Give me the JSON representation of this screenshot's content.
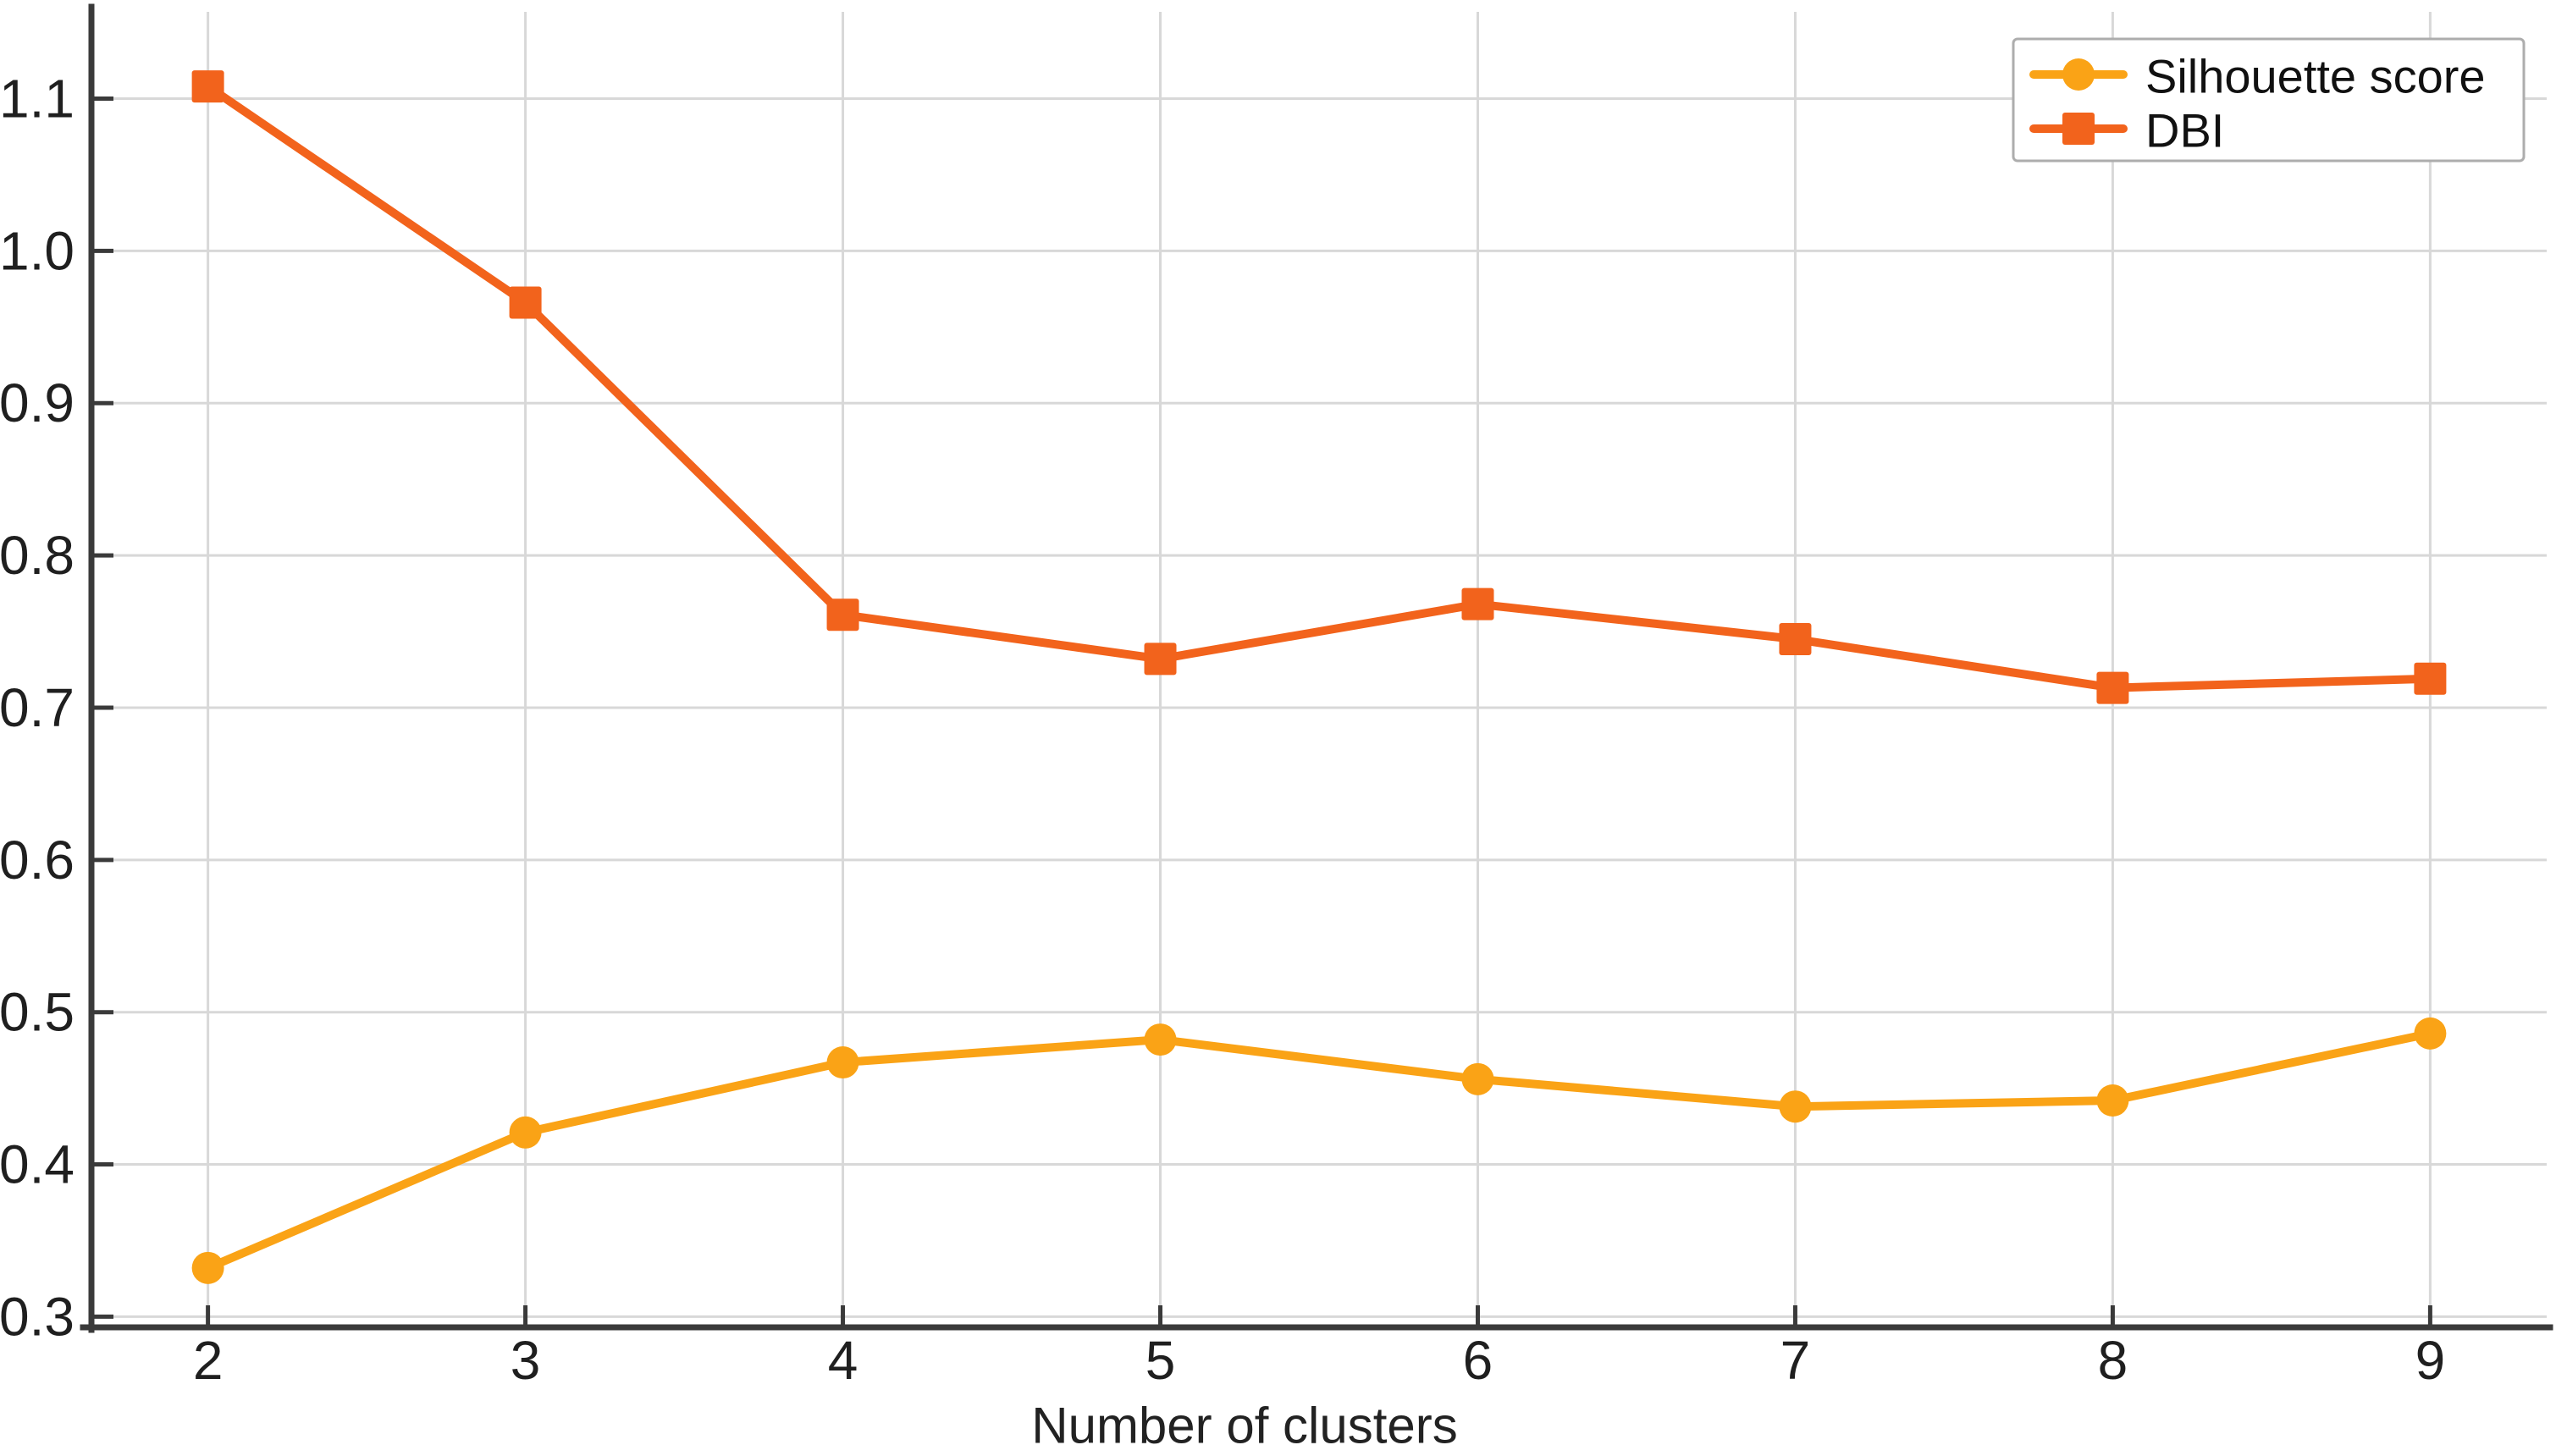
{
  "chart_data": {
    "type": "line",
    "title": "",
    "xlabel": "Number of clusters",
    "ylabel": "",
    "x": [
      2,
      3,
      4,
      5,
      6,
      7,
      8,
      9
    ],
    "x_tick_labels": [
      "2",
      "3",
      "4",
      "5",
      "6",
      "7",
      "8",
      "9"
    ],
    "y_ticks": [
      0.3,
      0.4,
      0.5,
      0.6,
      0.7,
      0.8,
      0.9,
      1.0,
      1.1
    ],
    "y_tick_labels": [
      "0.3",
      "0.4",
      "0.5",
      "0.6",
      "0.7",
      "0.8",
      "0.9",
      "1.0",
      "1.1"
    ],
    "xlim": [
      1.633,
      9.367
    ],
    "ylim": [
      0.293,
      1.157
    ],
    "grid": true,
    "legend_position": "top-right",
    "series": [
      {
        "name": "Silhouette score",
        "marker": "circle",
        "color": "#FAA316",
        "values": [
          0.332,
          0.421,
          0.467,
          0.482,
          0.456,
          0.438,
          0.442,
          0.486
        ]
      },
      {
        "name": "DBI",
        "marker": "square",
        "color": "#F2631C",
        "values": [
          1.108,
          0.966,
          0.761,
          0.732,
          0.768,
          0.745,
          0.713,
          0.719
        ]
      }
    ]
  },
  "colors": {
    "background": "#FFFFFF",
    "grid": "#D8D8D8",
    "axis": "#3A3A3A",
    "tick_text": "#1F1F1F",
    "legend_border": "#ADADAD",
    "legend_text": "#111111"
  }
}
